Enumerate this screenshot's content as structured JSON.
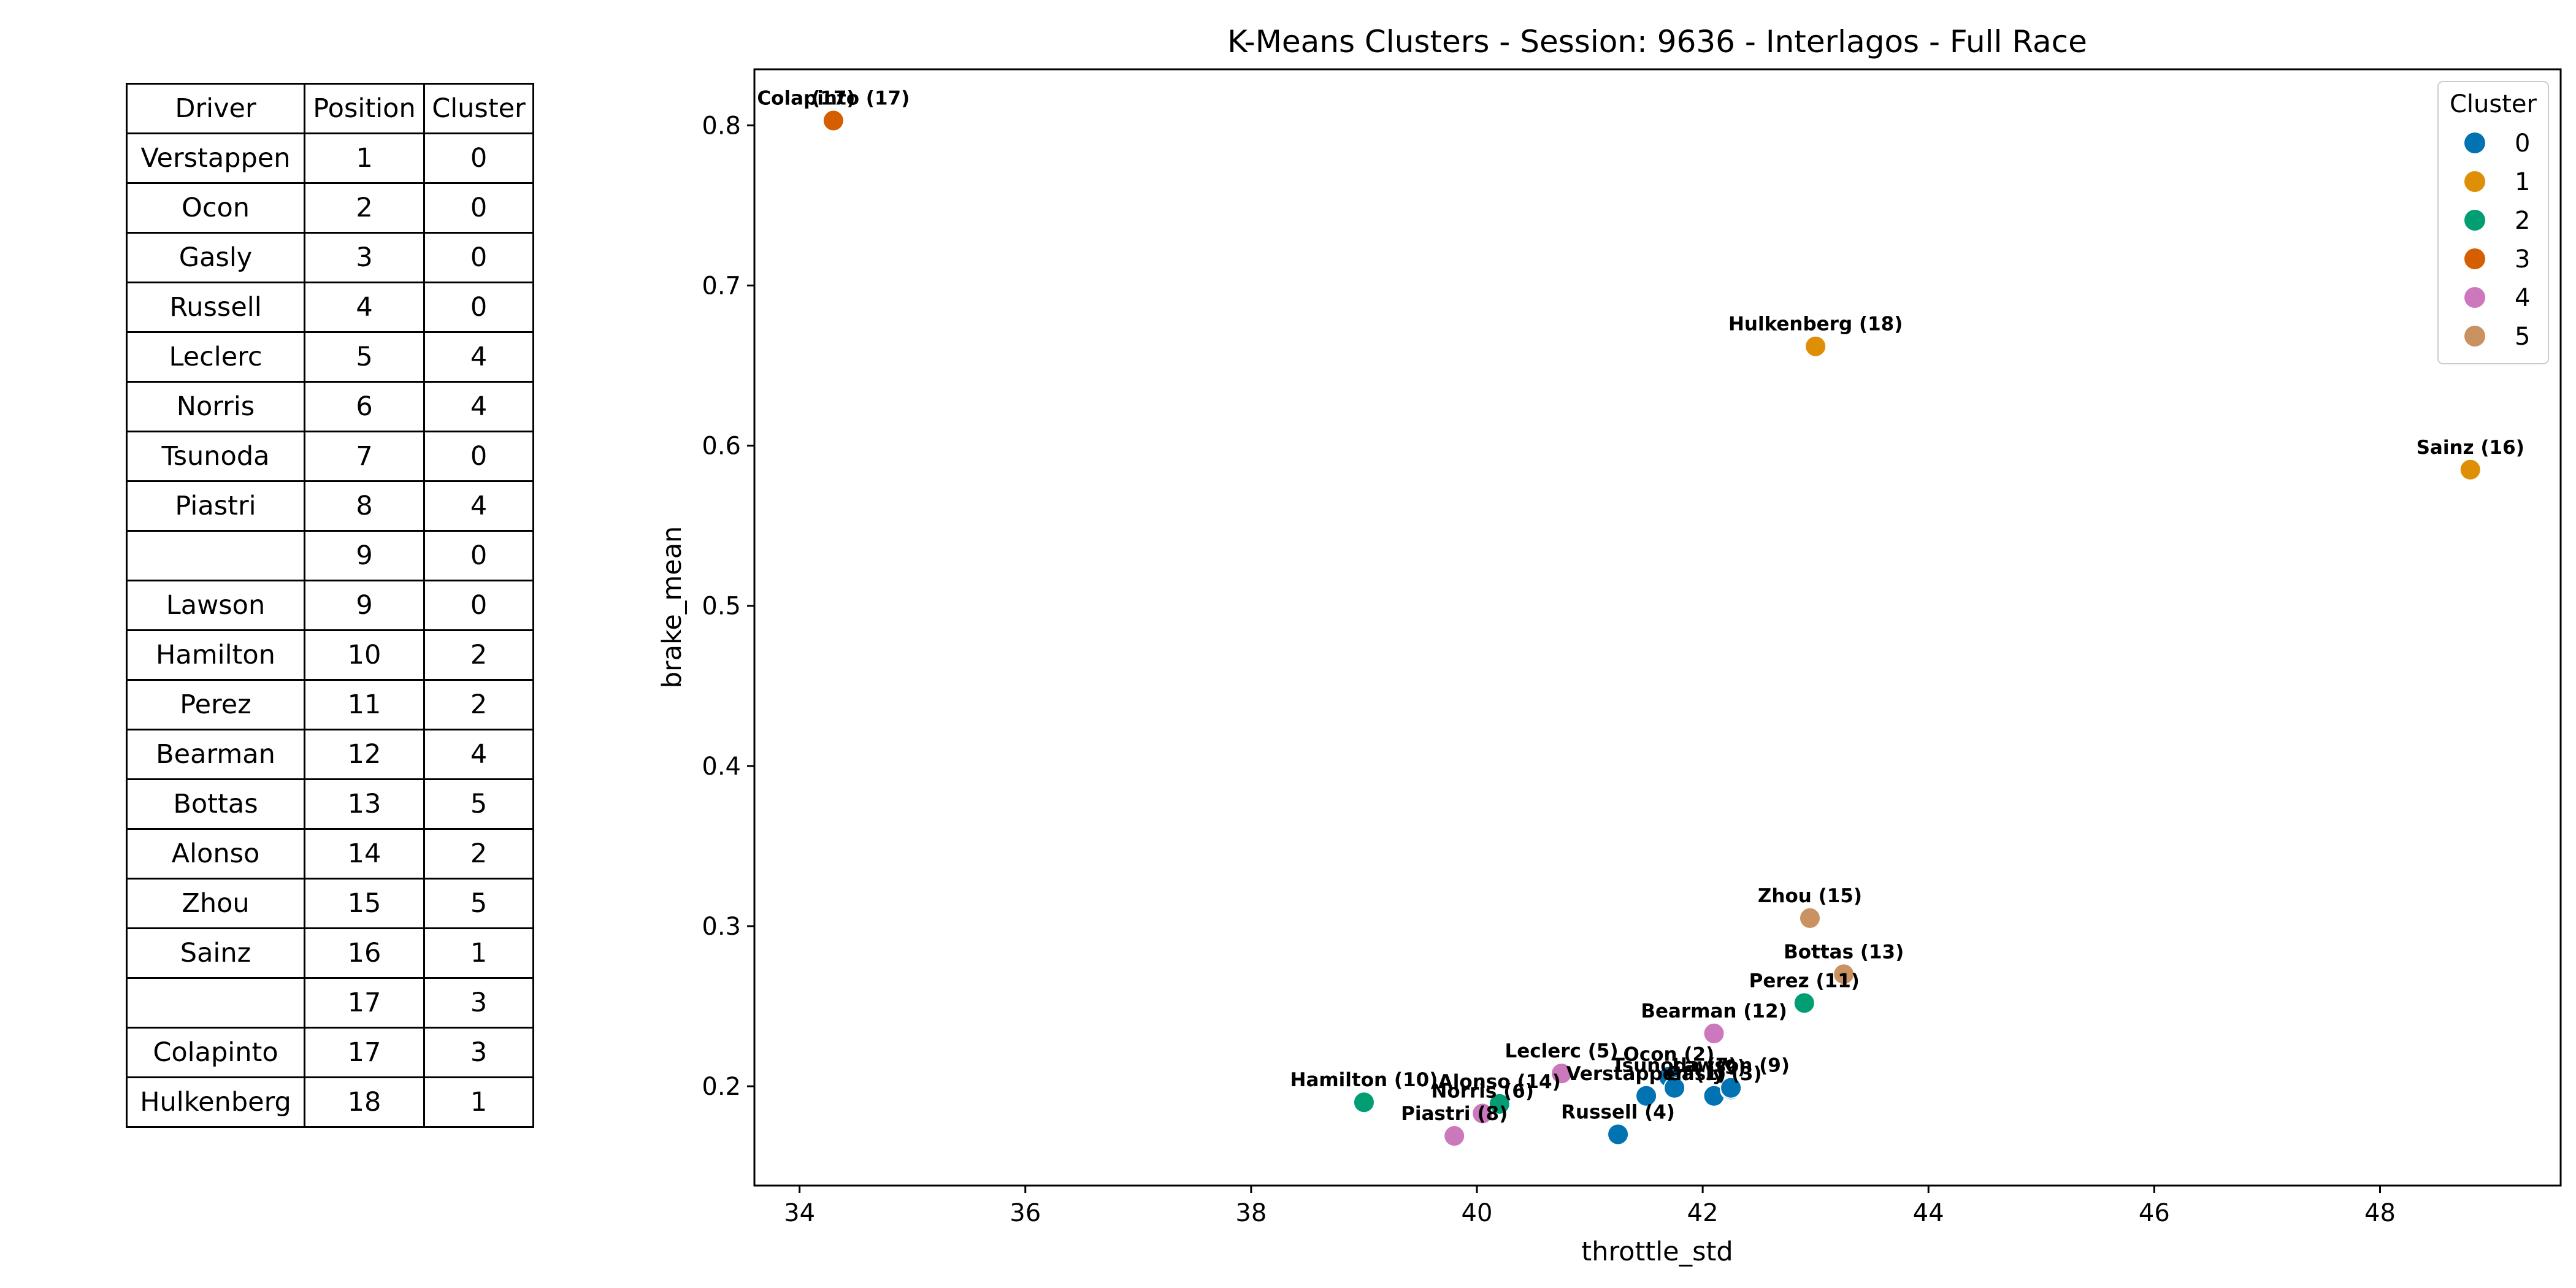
{
  "table": {
    "headers": [
      "Driver",
      "Position",
      "Cluster"
    ],
    "rows": [
      [
        "Verstappen",
        "1",
        "0"
      ],
      [
        "Ocon",
        "2",
        "0"
      ],
      [
        "Gasly",
        "3",
        "0"
      ],
      [
        "Russell",
        "4",
        "0"
      ],
      [
        "Leclerc",
        "5",
        "4"
      ],
      [
        "Norris",
        "6",
        "4"
      ],
      [
        "Tsunoda",
        "7",
        "0"
      ],
      [
        "Piastri",
        "8",
        "4"
      ],
      [
        "",
        "9",
        "0"
      ],
      [
        "Lawson",
        "9",
        "0"
      ],
      [
        "Hamilton",
        "10",
        "2"
      ],
      [
        "Perez",
        "11",
        "2"
      ],
      [
        "Bearman",
        "12",
        "4"
      ],
      [
        "Bottas",
        "13",
        "5"
      ],
      [
        "Alonso",
        "14",
        "2"
      ],
      [
        "Zhou",
        "15",
        "5"
      ],
      [
        "Sainz",
        "16",
        "1"
      ],
      [
        "",
        "17",
        "3"
      ],
      [
        "Colapinto",
        "17",
        "3"
      ],
      [
        "Hulkenberg",
        "18",
        "1"
      ]
    ]
  },
  "chart_data": {
    "type": "scatter",
    "title": "K-Means Clusters - Session: 9636 - Interlagos - Full Race",
    "xlabel": "throttle_std",
    "ylabel": "brake_mean",
    "xlim": [
      33.6,
      49.6
    ],
    "ylim": [
      0.138,
      0.835
    ],
    "xticks": [
      34,
      36,
      38,
      40,
      42,
      44,
      46,
      48
    ],
    "yticks": [
      0.2,
      0.3,
      0.4,
      0.5,
      0.6,
      0.7,
      0.8
    ],
    "ytick_labels": [
      "0.2",
      "0.3",
      "0.4",
      "0.5",
      "0.6",
      "0.7",
      "0.8"
    ],
    "legend": {
      "title": "Cluster",
      "position": "top-right",
      "entries": [
        {
          "label": "0",
          "color": "#0173b2"
        },
        {
          "label": "1",
          "color": "#de8f05"
        },
        {
          "label": "2",
          "color": "#029e73"
        },
        {
          "label": "3",
          "color": "#d55e00"
        },
        {
          "label": "4",
          "color": "#cc78bc"
        },
        {
          "label": "5",
          "color": "#ca9161"
        }
      ]
    },
    "points": [
      {
        "label": "Verstappen (1)",
        "x": 41.5,
        "y": 0.194,
        "cluster": 0
      },
      {
        "label": "Ocon (2)",
        "x": 41.7,
        "y": 0.206,
        "cluster": 0
      },
      {
        "label": "Gasly (3)",
        "x": 42.1,
        "y": 0.194,
        "cluster": 0
      },
      {
        "label": "Russell (4)",
        "x": 41.25,
        "y": 0.17,
        "cluster": 0
      },
      {
        "label": "Leclerc (5)",
        "x": 40.75,
        "y": 0.208,
        "cluster": 4
      },
      {
        "label": "Norris (6)",
        "x": 40.05,
        "y": 0.183,
        "cluster": 4
      },
      {
        "label": "Tsunoda (7)",
        "x": 41.75,
        "y": 0.199,
        "cluster": 0
      },
      {
        "label": "Piastri (8)",
        "x": 39.8,
        "y": 0.169,
        "cluster": 4
      },
      {
        "label": "(9)",
        "x": 42.25,
        "y": 0.198,
        "cluster": 0
      },
      {
        "label": "Lawson (9)",
        "x": 42.25,
        "y": 0.199,
        "cluster": 0
      },
      {
        "label": "Hamilton (10)",
        "x": 39.0,
        "y": 0.19,
        "cluster": 2
      },
      {
        "label": "Perez (11)",
        "x": 42.9,
        "y": 0.252,
        "cluster": 2
      },
      {
        "label": "Bearman (12)",
        "x": 42.1,
        "y": 0.233,
        "cluster": 4
      },
      {
        "label": "Bottas (13)",
        "x": 43.25,
        "y": 0.27,
        "cluster": 5
      },
      {
        "label": "Alonso (14)",
        "x": 40.2,
        "y": 0.189,
        "cluster": 2
      },
      {
        "label": "Zhou (15)",
        "x": 42.95,
        "y": 0.305,
        "cluster": 5
      },
      {
        "label": "Sainz (16)",
        "x": 48.8,
        "y": 0.585,
        "cluster": 1
      },
      {
        "label": "(17)",
        "x": 34.3,
        "y": 0.803,
        "cluster": 3
      },
      {
        "label": "Colapinto (17)",
        "x": 34.3,
        "y": 0.803,
        "cluster": 3
      },
      {
        "label": "Hulkenberg (18)",
        "x": 43.0,
        "y": 0.662,
        "cluster": 1
      }
    ]
  }
}
